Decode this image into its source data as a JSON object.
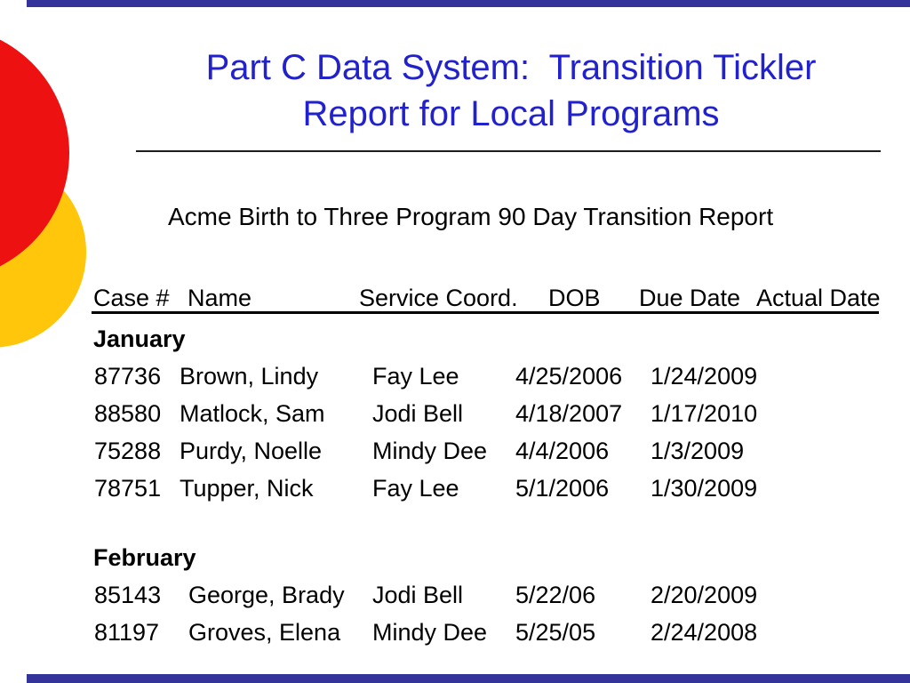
{
  "slide": {
    "title_line1": "Part C Data System:  Transition Tickler",
    "title_line2": "Report for Local Programs",
    "accent_colors": {
      "title_blue": "#2222CC",
      "bar_navy": "#333399",
      "circle_red": "#EE1111",
      "circle_yellow": "#FFC60B"
    }
  },
  "report": {
    "subtitle": "Acme Birth to Three Program 90 Day Transition Report",
    "columns": [
      "Case #",
      "Name",
      "Service Coord.",
      "DOB",
      "Due Date",
      "Actual Date"
    ],
    "groups": [
      {
        "month": "January",
        "rows": [
          {
            "case": "87736",
            "name": "Brown, Lindy",
            "coord": "Fay Lee",
            "dob": "4/25/2006",
            "due": "1/24/2009",
            "actual": ""
          },
          {
            "case": "88580",
            "name": "Matlock, Sam",
            "coord": "Jodi Bell",
            "dob": "4/18/2007",
            "due": "1/17/2010",
            "actual": ""
          },
          {
            "case": "75288",
            "name": "Purdy, Noelle",
            "coord": "Mindy Dee",
            "dob": "4/4/2006",
            "due": "1/3/2009",
            "actual": ""
          },
          {
            "case": "78751",
            "name": "Tupper, Nick",
            "coord": "Fay Lee",
            "dob": "5/1/2006",
            "due": "1/30/2009",
            "actual": ""
          }
        ]
      },
      {
        "month": "February",
        "rows": [
          {
            "case": "85143",
            "name": "George, Brady",
            "coord": "Jodi Bell",
            "dob": "5/22/06",
            "due": "2/20/2009",
            "actual": ""
          },
          {
            "case": "81197",
            "name": "Groves, Elena",
            "coord": "Mindy Dee",
            "dob": "5/25/05",
            "due": "2/24/2008",
            "actual": ""
          }
        ]
      }
    ]
  }
}
